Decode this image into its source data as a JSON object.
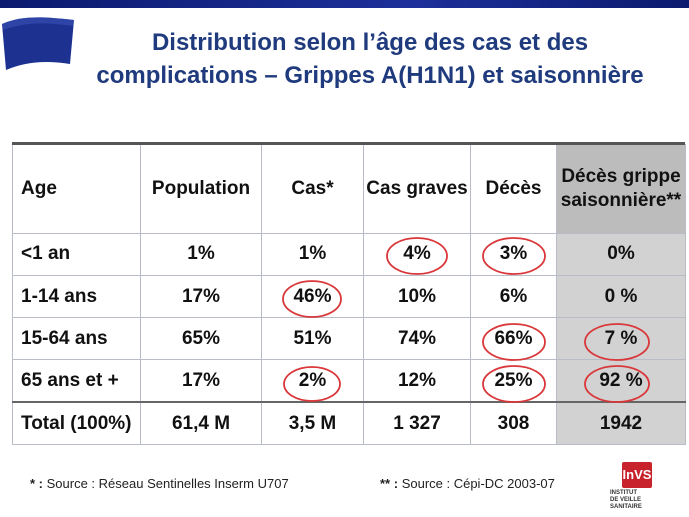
{
  "title": {
    "line1": "Distribution selon l’âge des cas et des",
    "line2": "complications – Grippes A(H1N1) et saisonnière"
  },
  "table": {
    "headers": [
      "Age",
      "Population",
      "Cas*",
      "Cas graves",
      "Décès",
      "Décès grippe saisonnière**"
    ],
    "rows": [
      [
        "<1 an",
        "1%",
        "1%",
        "4%",
        "3%",
        "0%"
      ],
      [
        "1-14 ans",
        "17%",
        "46%",
        "10%",
        "6%",
        "0 %"
      ],
      [
        "15-64 ans",
        "65%",
        "51%",
        "74%",
        "66%",
        "7 %"
      ],
      [
        "65 ans et +",
        "17%",
        "2%",
        "12%",
        "25%",
        "92 %"
      ],
      [
        "Total (100%)",
        "61,4 M",
        "3,5 M",
        "1 327",
        "308",
        "1942"
      ]
    ]
  },
  "footnotes": {
    "note1_marker": "* :",
    "note1_text": "Source : Réseau Sentinelles Inserm U707",
    "note2_marker": "** :",
    "note2_text": "Source : Cépi-DC 2003-07"
  },
  "logo": {
    "mark": "InVS",
    "line1": "INSTITUT",
    "line2": "DE VEILLE SANITAIRE"
  },
  "colors": {
    "title": "#1f3a7d",
    "circle": "#d9373a",
    "shaded_column": "#d2d2d2",
    "logo_red": "#c8232c"
  }
}
